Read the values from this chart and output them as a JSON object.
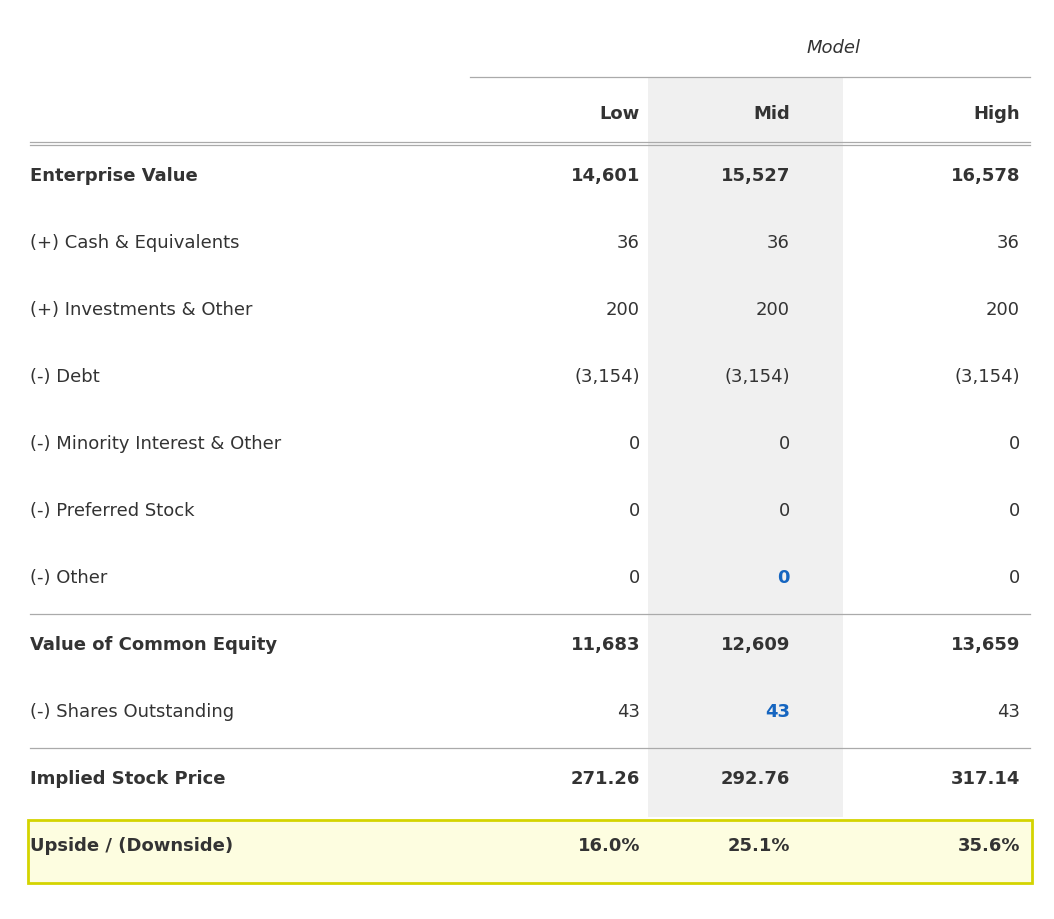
{
  "title": "Model",
  "columns": [
    "Low",
    "Mid",
    "High"
  ],
  "rows": [
    {
      "label": "Enterprise Value",
      "values": [
        "14,601",
        "15,527",
        "16,578"
      ],
      "bold": true,
      "border_top": true,
      "mid_blue": false
    },
    {
      "label": "(+) Cash & Equivalents",
      "values": [
        "36",
        "36",
        "36"
      ],
      "bold": false,
      "border_top": false,
      "mid_blue": false
    },
    {
      "label": "(+) Investments & Other",
      "values": [
        "200",
        "200",
        "200"
      ],
      "bold": false,
      "border_top": false,
      "mid_blue": false
    },
    {
      "label": "(-) Debt",
      "values": [
        "(3,154)",
        "(3,154)",
        "(3,154)"
      ],
      "bold": false,
      "border_top": false,
      "mid_blue": false
    },
    {
      "label": "(-) Minority Interest & Other",
      "values": [
        "0",
        "0",
        "0"
      ],
      "bold": false,
      "border_top": false,
      "mid_blue": false
    },
    {
      "label": "(-) Preferred Stock",
      "values": [
        "0",
        "0",
        "0"
      ],
      "bold": false,
      "border_top": false,
      "mid_blue": false
    },
    {
      "label": "(-) Other",
      "values": [
        "0",
        "0",
        "0"
      ],
      "bold": false,
      "border_top": false,
      "mid_blue": true
    },
    {
      "label": "Value of Common Equity",
      "values": [
        "11,683",
        "12,609",
        "13,659"
      ],
      "bold": true,
      "border_top": true,
      "mid_blue": false
    },
    {
      "label": "(-) Shares Outstanding",
      "values": [
        "43",
        "43",
        "43"
      ],
      "bold": false,
      "border_top": false,
      "mid_blue": true
    },
    {
      "label": "Implied Stock Price",
      "values": [
        "271.26",
        "292.76",
        "317.14"
      ],
      "bold": true,
      "border_top": true,
      "mid_blue": false
    },
    {
      "label": "Upside / (Downside)",
      "values": [
        "16.0%",
        "25.1%",
        "35.6%"
      ],
      "bold": true,
      "border_top": false,
      "highlight": true,
      "mid_blue": false
    }
  ],
  "bg_color": "#ffffff",
  "mid_col_bg": "#f0f0f0",
  "highlight_bg": "#fdfde0",
  "highlight_border": "#d4d400",
  "text_color": "#333333",
  "blue_color": "#1565c0",
  "line_color": "#aaaaaa",
  "label_fontsize": 13,
  "value_fontsize": 13,
  "header_fontsize": 13,
  "title_fontsize": 13
}
